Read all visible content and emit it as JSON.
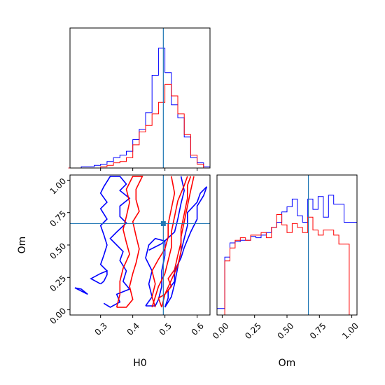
{
  "colors": {
    "series_a": "#0000ff",
    "series_b": "#ff0000",
    "truth": "#1f77b4",
    "axes": "#000000",
    "background": "#ffffff"
  },
  "chart_data": {
    "type": "corner",
    "parameters": [
      "H0",
      "Om"
    ],
    "xlabels": {
      "h0": "H0",
      "om": "Om"
    },
    "ylabels": {
      "om": "Om"
    },
    "ranges": {
      "h0": [
        0.205,
        0.64
      ],
      "om": [
        -0.04,
        1.04
      ]
    },
    "ticks": {
      "h0": [
        {
          "value": 0.3,
          "label": "0.3"
        },
        {
          "value": 0.4,
          "label": "0.4"
        },
        {
          "value": 0.5,
          "label": "0.5"
        },
        {
          "value": 0.6,
          "label": "0.6"
        }
      ],
      "om": [
        {
          "value": 0.0,
          "label": "0.00"
        },
        {
          "value": 0.25,
          "label": "0.25"
        },
        {
          "value": 0.5,
          "label": "0.50"
        },
        {
          "value": 0.75,
          "label": "0.75"
        },
        {
          "value": 1.0,
          "label": "1.00"
        }
      ]
    },
    "truth": {
      "h0": 0.495,
      "om": 0.665
    },
    "hist_h0": {
      "edges": [
        0.2,
        0.22,
        0.24,
        0.26,
        0.28,
        0.3,
        0.32,
        0.34,
        0.36,
        0.38,
        0.4,
        0.42,
        0.44,
        0.46,
        0.48,
        0.5,
        0.52,
        0.54,
        0.56,
        0.58,
        0.6,
        0.62,
        0.64
      ],
      "series": [
        {
          "color_key": "series_a",
          "values": [
            0,
            0,
            0.01,
            0.01,
            0.02,
            0.03,
            0.05,
            0.08,
            0.1,
            0.13,
            0.22,
            0.3,
            0.43,
            0.72,
            0.93,
            0.74,
            0.49,
            0.39,
            0.24,
            0.08,
            0.04,
            0.01
          ]
        },
        {
          "color_key": "series_b",
          "values": [
            0,
            0,
            0,
            0,
            0,
            0.01,
            0.02,
            0.04,
            0.05,
            0.08,
            0.18,
            0.28,
            0.33,
            0.42,
            0.51,
            0.65,
            0.56,
            0.42,
            0.26,
            0.1,
            0.03,
            0
          ]
        }
      ]
    },
    "hist_om": {
      "edges": [
        -0.04,
        0.02,
        0.06,
        0.1,
        0.14,
        0.18,
        0.22,
        0.26,
        0.3,
        0.34,
        0.38,
        0.42,
        0.46,
        0.5,
        0.54,
        0.58,
        0.62,
        0.66,
        0.7,
        0.74,
        0.78,
        0.82,
        0.86,
        0.9,
        0.94,
        0.98,
        1.04
      ],
      "series": [
        {
          "color_key": "series_a",
          "values": [
            0.05,
            0.45,
            0.56,
            0.57,
            0.58,
            0.58,
            0.61,
            0.6,
            0.62,
            0.64,
            0.68,
            0.72,
            0.8,
            0.84,
            0.9,
            0.77,
            0.72,
            0.9,
            0.82,
            0.92,
            0.76,
            0.93,
            0.86,
            0.86,
            0.72,
            0.72
          ]
        },
        {
          "color_key": "series_b",
          "values": [
            0,
            0.42,
            0.52,
            0.58,
            0.6,
            0.58,
            0.62,
            0.62,
            0.64,
            0.6,
            0.68,
            0.78,
            0.7,
            0.64,
            0.71,
            0.68,
            0.64,
            0.76,
            0.66,
            0.62,
            0.66,
            0.66,
            0.62,
            0.55,
            0.55,
            0.0
          ]
        }
      ]
    },
    "contours": [
      {
        "color_key": "series_a",
        "points": [
          [
            0.22,
            0.17
          ],
          [
            0.26,
            0.12
          ],
          [
            0.24,
            0.16
          ],
          [
            0.22,
            0.17
          ]
        ]
      },
      {
        "color_key": "series_a",
        "points": [
          [
            0.3,
            0.2
          ],
          [
            0.27,
            0.24
          ],
          [
            0.3,
            0.28
          ],
          [
            0.32,
            0.3
          ],
          [
            0.32,
            0.27
          ],
          [
            0.31,
            0.22
          ],
          [
            0.3,
            0.2
          ]
        ]
      },
      {
        "color_key": "series_a",
        "points": [
          [
            0.32,
            0.3
          ],
          [
            0.3,
            0.35
          ],
          [
            0.31,
            0.42
          ],
          [
            0.32,
            0.5
          ],
          [
            0.31,
            0.58
          ],
          [
            0.3,
            0.65
          ],
          [
            0.32,
            0.7
          ],
          [
            0.3,
            0.78
          ],
          [
            0.32,
            0.83
          ],
          [
            0.3,
            0.9
          ],
          [
            0.31,
            0.95
          ],
          [
            0.32,
            0.99
          ],
          [
            0.33,
            1.03
          ],
          [
            0.36,
            1.03
          ],
          [
            0.38,
            0.97
          ],
          [
            0.36,
            0.92
          ],
          [
            0.39,
            0.86
          ],
          [
            0.36,
            0.8
          ],
          [
            0.36,
            0.72
          ],
          [
            0.38,
            0.67
          ],
          [
            0.35,
            0.6
          ],
          [
            0.33,
            0.55
          ],
          [
            0.35,
            0.5
          ],
          [
            0.37,
            0.45
          ],
          [
            0.36,
            0.38
          ],
          [
            0.38,
            0.3
          ],
          [
            0.37,
            0.22
          ],
          [
            0.39,
            0.16
          ],
          [
            0.35,
            0.12
          ],
          [
            0.36,
            0.06
          ],
          [
            0.33,
            0.02
          ],
          [
            0.31,
            0.05
          ]
        ]
      },
      {
        "color_key": "series_a",
        "points": [
          [
            0.44,
            0.03
          ],
          [
            0.46,
            0.1
          ],
          [
            0.45,
            0.2
          ],
          [
            0.46,
            0.3
          ],
          [
            0.44,
            0.4
          ],
          [
            0.45,
            0.5
          ],
          [
            0.47,
            0.55
          ],
          [
            0.5,
            0.53
          ],
          [
            0.5,
            0.42
          ],
          [
            0.49,
            0.3
          ],
          [
            0.49,
            0.18
          ],
          [
            0.48,
            0.08
          ],
          [
            0.47,
            0.03
          ],
          [
            0.44,
            0.03
          ]
        ]
      },
      {
        "color_key": "series_a",
        "points": [
          [
            0.5,
            0.02
          ],
          [
            0.52,
            0.1
          ],
          [
            0.53,
            0.2
          ],
          [
            0.54,
            0.33
          ],
          [
            0.55,
            0.45
          ],
          [
            0.56,
            0.55
          ],
          [
            0.57,
            0.65
          ],
          [
            0.57,
            0.75
          ],
          [
            0.6,
            0.83
          ],
          [
            0.61,
            0.9
          ],
          [
            0.63,
            0.95
          ]
        ]
      },
      {
        "color_key": "series_a",
        "points": [
          [
            0.5,
            0.02
          ],
          [
            0.51,
            0.09
          ],
          [
            0.51,
            0.15
          ],
          [
            0.53,
            0.22
          ],
          [
            0.53,
            0.3
          ],
          [
            0.55,
            0.4
          ],
          [
            0.56,
            0.48
          ],
          [
            0.58,
            0.6
          ],
          [
            0.6,
            0.7
          ],
          [
            0.6,
            0.8
          ],
          [
            0.62,
            0.88
          ],
          [
            0.63,
            0.95
          ]
        ]
      },
      {
        "color_key": "series_a",
        "points": [
          [
            0.45,
            0.46
          ],
          [
            0.49,
            0.51
          ],
          [
            0.53,
            0.6
          ],
          [
            0.54,
            0.7
          ],
          [
            0.55,
            0.82
          ],
          [
            0.56,
            0.92
          ],
          [
            0.55,
            1.03
          ]
        ]
      },
      {
        "color_key": "series_b",
        "points": [
          [
            0.35,
            0.02
          ],
          [
            0.36,
            0.12
          ],
          [
            0.36,
            0.22
          ],
          [
            0.37,
            0.32
          ],
          [
            0.39,
            0.43
          ],
          [
            0.38,
            0.52
          ],
          [
            0.37,
            0.62
          ],
          [
            0.38,
            0.72
          ],
          [
            0.39,
            0.83
          ],
          [
            0.38,
            0.93
          ],
          [
            0.4,
            1.03
          ],
          [
            0.43,
            1.03
          ],
          [
            0.41,
            0.93
          ],
          [
            0.41,
            0.85
          ],
          [
            0.42,
            0.76
          ],
          [
            0.4,
            0.68
          ],
          [
            0.41,
            0.57
          ],
          [
            0.42,
            0.47
          ],
          [
            0.41,
            0.36
          ],
          [
            0.4,
            0.28
          ],
          [
            0.39,
            0.18
          ],
          [
            0.4,
            0.08
          ],
          [
            0.38,
            0.02
          ],
          [
            0.35,
            0.02
          ]
        ]
      },
      {
        "color_key": "series_b",
        "points": [
          [
            0.46,
            0.02
          ],
          [
            0.47,
            0.1
          ],
          [
            0.48,
            0.18
          ],
          [
            0.5,
            0.28
          ],
          [
            0.51,
            0.38
          ],
          [
            0.52,
            0.48
          ],
          [
            0.52,
            0.6
          ],
          [
            0.53,
            0.72
          ],
          [
            0.54,
            0.84
          ],
          [
            0.56,
            0.96
          ],
          [
            0.57,
            1.03
          ]
        ]
      },
      {
        "color_key": "series_b",
        "points": [
          [
            0.49,
            0.02
          ],
          [
            0.5,
            0.12
          ],
          [
            0.52,
            0.23
          ],
          [
            0.54,
            0.34
          ],
          [
            0.55,
            0.45
          ],
          [
            0.55,
            0.56
          ],
          [
            0.56,
            0.68
          ],
          [
            0.57,
            0.8
          ],
          [
            0.58,
            0.92
          ],
          [
            0.59,
            1.03
          ]
        ]
      },
      {
        "color_key": "series_b",
        "points": [
          [
            0.49,
            0.02
          ],
          [
            0.48,
            0.09
          ],
          [
            0.5,
            0.12
          ],
          [
            0.52,
            0.18
          ],
          [
            0.51,
            0.24
          ],
          [
            0.53,
            0.31
          ],
          [
            0.54,
            0.42
          ],
          [
            0.55,
            0.52
          ],
          [
            0.55,
            0.62
          ],
          [
            0.56,
            0.74
          ],
          [
            0.57,
            0.86
          ],
          [
            0.57,
            0.96
          ],
          [
            0.58,
            1.03
          ]
        ]
      },
      {
        "color_key": "series_b",
        "points": [
          [
            0.47,
            0.02
          ],
          [
            0.46,
            0.1
          ],
          [
            0.47,
            0.2
          ],
          [
            0.46,
            0.3
          ],
          [
            0.48,
            0.39
          ],
          [
            0.5,
            0.47
          ],
          [
            0.51,
            0.56
          ],
          [
            0.51,
            0.66
          ],
          [
            0.52,
            0.78
          ],
          [
            0.53,
            0.9
          ],
          [
            0.52,
            1.03
          ]
        ]
      }
    ]
  }
}
